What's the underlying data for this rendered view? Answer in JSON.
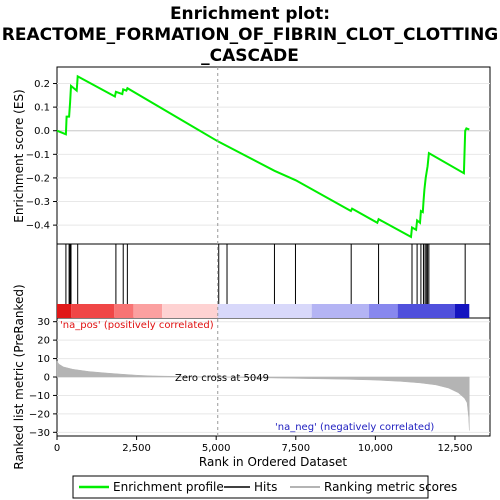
{
  "chart_data": {
    "type": "line",
    "title_lines": [
      "Enrichment plot:",
      "REACTOME_FORMATION_OF_FIBRIN_CLOT_CLOTTING",
      "_CASCADE"
    ],
    "x_axis": {
      "label": "Rank in Ordered Dataset",
      "range": [
        0,
        13600
      ],
      "ticks": [
        0,
        2500,
        5000,
        7500,
        10000,
        12500
      ],
      "tick_labels": [
        "0",
        "2,500",
        "5,000",
        "7,500",
        "10,000",
        "12,500"
      ]
    },
    "es_panel": {
      "ylabel": "Enrichment score (ES)",
      "ylim": [
        -0.48,
        0.27
      ],
      "yticks": [
        -0.4,
        -0.3,
        -0.2,
        -0.1,
        0.0,
        0.1,
        0.2
      ],
      "ytick_labels": [
        "−0.4",
        "−0.3",
        "−0.2",
        "−0.1",
        "0.0",
        "0.1",
        "0.2"
      ],
      "series_name": "Enrichment profile",
      "color": "#00ee00",
      "points": [
        [
          0,
          0.0
        ],
        [
          280,
          -0.015
        ],
        [
          300,
          0.06
        ],
        [
          380,
          0.06
        ],
        [
          410,
          0.12
        ],
        [
          440,
          0.19
        ],
        [
          620,
          0.17
        ],
        [
          650,
          0.23
        ],
        [
          1820,
          0.145
        ],
        [
          1850,
          0.165
        ],
        [
          2050,
          0.155
        ],
        [
          2080,
          0.175
        ],
        [
          2180,
          0.17
        ],
        [
          2210,
          0.18
        ],
        [
          5049,
          -0.045
        ],
        [
          6830,
          -0.17
        ],
        [
          7500,
          -0.21
        ],
        [
          9230,
          -0.34
        ],
        [
          9270,
          -0.33
        ],
        [
          10060,
          -0.39
        ],
        [
          10100,
          -0.375
        ],
        [
          11120,
          -0.45
        ],
        [
          11150,
          -0.41
        ],
        [
          11280,
          -0.42
        ],
        [
          11310,
          -0.38
        ],
        [
          11400,
          -0.39
        ],
        [
          11430,
          -0.34
        ],
        [
          11490,
          -0.345
        ],
        [
          11510,
          -0.3
        ],
        [
          11540,
          -0.25
        ],
        [
          11580,
          -0.2
        ],
        [
          11640,
          -0.15
        ],
        [
          11680,
          -0.095
        ],
        [
          12780,
          -0.18
        ],
        [
          12820,
          0.0
        ],
        [
          12860,
          0.01
        ],
        [
          12950,
          0.005
        ]
      ]
    },
    "hits_panel": {
      "hit_positions": [
        280,
        380,
        410,
        440,
        650,
        1850,
        2080,
        2210,
        5080,
        5340,
        6830,
        7490,
        9240,
        10100,
        11150,
        11310,
        11430,
        11510,
        11560,
        11600,
        11640,
        11680,
        12820
      ],
      "color_bar": [
        {
          "from": 0,
          "to": 450,
          "color": "#e01818"
        },
        {
          "from": 450,
          "to": 1800,
          "color": "#f04646"
        },
        {
          "from": 1800,
          "to": 2400,
          "color": "#f87474"
        },
        {
          "from": 2400,
          "to": 3300,
          "color": "#fba0a0"
        },
        {
          "from": 3300,
          "to": 5049,
          "color": "#fed2d2"
        },
        {
          "from": 5049,
          "to": 8000,
          "color": "#d8d8fa"
        },
        {
          "from": 8000,
          "to": 9800,
          "color": "#b4b4f4"
        },
        {
          "from": 9800,
          "to": 10700,
          "color": "#8888ee"
        },
        {
          "from": 10700,
          "to": 12500,
          "color": "#5050dc"
        },
        {
          "from": 12500,
          "to": 12950,
          "color": "#1414c0"
        }
      ]
    },
    "metric_panel": {
      "ylabel": "Ranked list metric (PreRanked)",
      "ylim": [
        -32,
        32
      ],
      "yticks": [
        -30,
        -20,
        -10,
        0,
        10,
        20,
        30
      ],
      "ytick_labels": [
        "−30",
        "−20",
        "−10",
        "0",
        "10",
        "20",
        "30"
      ],
      "fill_color": "#b4b4b4",
      "curve": [
        [
          0,
          8.5
        ],
        [
          60,
          7.0
        ],
        [
          200,
          5.5
        ],
        [
          500,
          4.2
        ],
        [
          1000,
          3.0
        ],
        [
          1500,
          2.2
        ],
        [
          2000,
          1.6
        ],
        [
          2500,
          1.0
        ],
        [
          3000,
          0.6
        ],
        [
          4000,
          0.25
        ],
        [
          5049,
          0.0
        ],
        [
          6000,
          -0.3
        ],
        [
          7000,
          -0.6
        ],
        [
          8000,
          -0.9
        ],
        [
          9000,
          -1.2
        ],
        [
          10000,
          -1.7
        ],
        [
          10800,
          -2.4
        ],
        [
          11400,
          -3.2
        ],
        [
          11900,
          -4.3
        ],
        [
          12300,
          -6.0
        ],
        [
          12600,
          -8.5
        ],
        [
          12800,
          -11.5
        ],
        [
          12880,
          -14
        ],
        [
          12930,
          -22
        ],
        [
          12950,
          -29
        ]
      ],
      "annotations": {
        "pos_label": "'na_pos' (positively correlated)",
        "neg_label": "'na_neg' (negatively correlated)",
        "zero_cross": "Zero cross at 5049",
        "zero_cross_rank": 5049
      }
    },
    "legend": {
      "items": [
        {
          "label": "Enrichment profile",
          "color": "#00ee00"
        },
        {
          "label": "Hits",
          "color": "#000000"
        },
        {
          "label": "Ranking metric scores",
          "color": "#b4b4b4"
        }
      ]
    }
  }
}
